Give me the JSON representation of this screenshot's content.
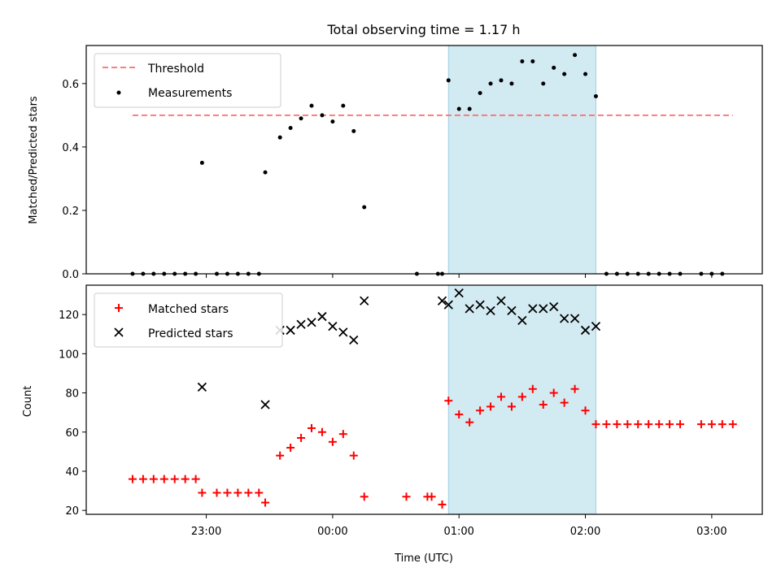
{
  "chart_data": [
    {
      "type": "scatter",
      "title": "Total observing time = 1.17 h",
      "xlabel": "",
      "ylabel": "Matched/Predicted stars",
      "ylim": [
        0.0,
        0.72
      ],
      "yticks": [
        0.0,
        0.2,
        0.4,
        0.6
      ],
      "ytick_labels": [
        "0.0",
        "0.2",
        "0.4",
        "0.6"
      ],
      "x_unit": "hours after 00:00 UTC",
      "highlight_span": {
        "x0": "00:55",
        "x1": "02:05",
        "color": "#add8e6"
      },
      "legend_placement": "upper-left",
      "threshold": {
        "name": "Threshold",
        "value": 0.5,
        "x0": "22:25",
        "x1": "03:10",
        "color": "#ff6b6b"
      },
      "series": [
        {
          "name": "Measurements",
          "color": "#000000",
          "marker": "dot",
          "x": [
            "22:25",
            "22:30",
            "22:35",
            "22:40",
            "22:45",
            "22:50",
            "22:55",
            "22:58",
            "23:05",
            "23:10",
            "23:15",
            "23:20",
            "23:25",
            "23:28",
            "23:35",
            "23:40",
            "23:45",
            "23:50",
            "23:55",
            "00:00",
            "00:05",
            "00:10",
            "00:15",
            "00:40",
            "00:50",
            "00:52",
            "00:55",
            "01:00",
            "01:05",
            "01:10",
            "01:15",
            "01:20",
            "01:25",
            "01:30",
            "01:35",
            "01:40",
            "01:45",
            "01:50",
            "01:55",
            "02:00",
            "02:05",
            "02:10",
            "02:15",
            "02:20",
            "02:25",
            "02:30",
            "02:35",
            "02:40",
            "02:45",
            "02:55",
            "03:00",
            "03:05"
          ],
          "y": [
            0,
            0,
            0,
            0,
            0,
            0,
            0,
            0.35,
            0,
            0,
            0,
            0,
            0,
            0.32,
            0.43,
            0.46,
            0.49,
            0.53,
            0.5,
            0.48,
            0.53,
            0.45,
            0.21,
            0,
            0,
            0,
            0.61,
            0.52,
            0.52,
            0.57,
            0.6,
            0.61,
            0.6,
            0.67,
            0.67,
            0.6,
            0.65,
            0.63,
            0.69,
            0.63,
            0.56,
            0,
            0,
            0,
            0,
            0,
            0,
            0,
            0,
            0,
            0,
            0
          ]
        }
      ]
    },
    {
      "type": "scatter",
      "title": "",
      "xlabel": "Time (UTC)",
      "ylabel": "Count",
      "ylim": [
        18,
        135
      ],
      "yticks": [
        20,
        40,
        60,
        80,
        100,
        120
      ],
      "ytick_labels": [
        "20",
        "40",
        "60",
        "80",
        "100",
        "120"
      ],
      "xticks": [
        "23:00",
        "00:00",
        "01:00",
        "02:00",
        "03:00"
      ],
      "highlight_span": {
        "x0": "00:55",
        "x1": "02:05",
        "color": "#add8e6"
      },
      "legend_placement": "upper-left",
      "series": [
        {
          "name": "Matched stars",
          "color": "#ff0000",
          "marker": "plus",
          "x": [
            "22:25",
            "22:30",
            "22:35",
            "22:40",
            "22:45",
            "22:50",
            "22:55",
            "22:58",
            "23:05",
            "23:10",
            "23:15",
            "23:20",
            "23:25",
            "23:28",
            "23:35",
            "23:40",
            "23:45",
            "23:50",
            "23:55",
            "00:00",
            "00:05",
            "00:10",
            "00:15",
            "00:35",
            "00:45",
            "00:47",
            "00:52",
            "00:55",
            "01:00",
            "01:05",
            "01:10",
            "01:15",
            "01:20",
            "01:25",
            "01:30",
            "01:35",
            "01:40",
            "01:45",
            "01:50",
            "01:55",
            "02:00",
            "02:05",
            "02:10",
            "02:15",
            "02:20",
            "02:25",
            "02:30",
            "02:35",
            "02:40",
            "02:45",
            "02:55",
            "03:00",
            "03:05",
            "03:10"
          ],
          "y": [
            36,
            36,
            36,
            36,
            36,
            36,
            36,
            29,
            29,
            29,
            29,
            29,
            29,
            24,
            48,
            52,
            57,
            62,
            60,
            55,
            59,
            48,
            27,
            27,
            27,
            27,
            23,
            76,
            69,
            65,
            71,
            73,
            78,
            73,
            78,
            82,
            74,
            80,
            75,
            82,
            71,
            64,
            64,
            64,
            64,
            64,
            64,
            64,
            64,
            64,
            64,
            64,
            64,
            64
          ]
        },
        {
          "name": "Predicted stars",
          "color": "#000000",
          "marker": "x",
          "x": [
            "22:58",
            "23:28",
            "23:35",
            "23:40",
            "23:45",
            "23:50",
            "23:55",
            "00:00",
            "00:05",
            "00:10",
            "00:15",
            "00:52",
            "00:55",
            "01:00",
            "01:05",
            "01:10",
            "01:15",
            "01:20",
            "01:25",
            "01:30",
            "01:35",
            "01:40",
            "01:45",
            "01:50",
            "01:55",
            "02:00",
            "02:05"
          ],
          "y": [
            83,
            74,
            112,
            112,
            115,
            116,
            119,
            114,
            111,
            107,
            127,
            127,
            125,
            131,
            123,
            125,
            122,
            127,
            122,
            117,
            123,
            123,
            124,
            118,
            118,
            112,
            114
          ]
        }
      ]
    }
  ]
}
